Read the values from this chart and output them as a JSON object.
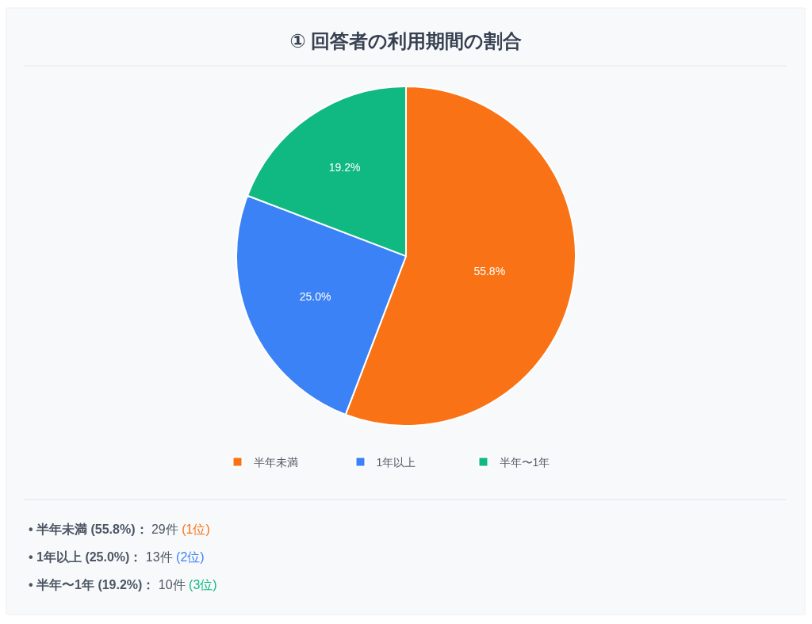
{
  "chart_data": {
    "type": "pie",
    "title": "① 回答者の利用期間の割合",
    "categories": [
      "半年未満",
      "1年以上",
      "半年〜1年"
    ],
    "values": [
      55.8,
      25.0,
      19.2
    ],
    "value_labels": [
      "55.8%",
      "25.0%",
      "19.2%"
    ],
    "colors": [
      "#f97316",
      "#3b82f6",
      "#10b981"
    ],
    "legend": "bottom",
    "annotations": [
      "• 半年未満 (55.8%)： 29件 (1位)",
      "• 1年以上 (25.0%)： 13件 (2位)",
      "• 半年〜1年 (19.2%)： 10件 (3位)"
    ]
  }
}
